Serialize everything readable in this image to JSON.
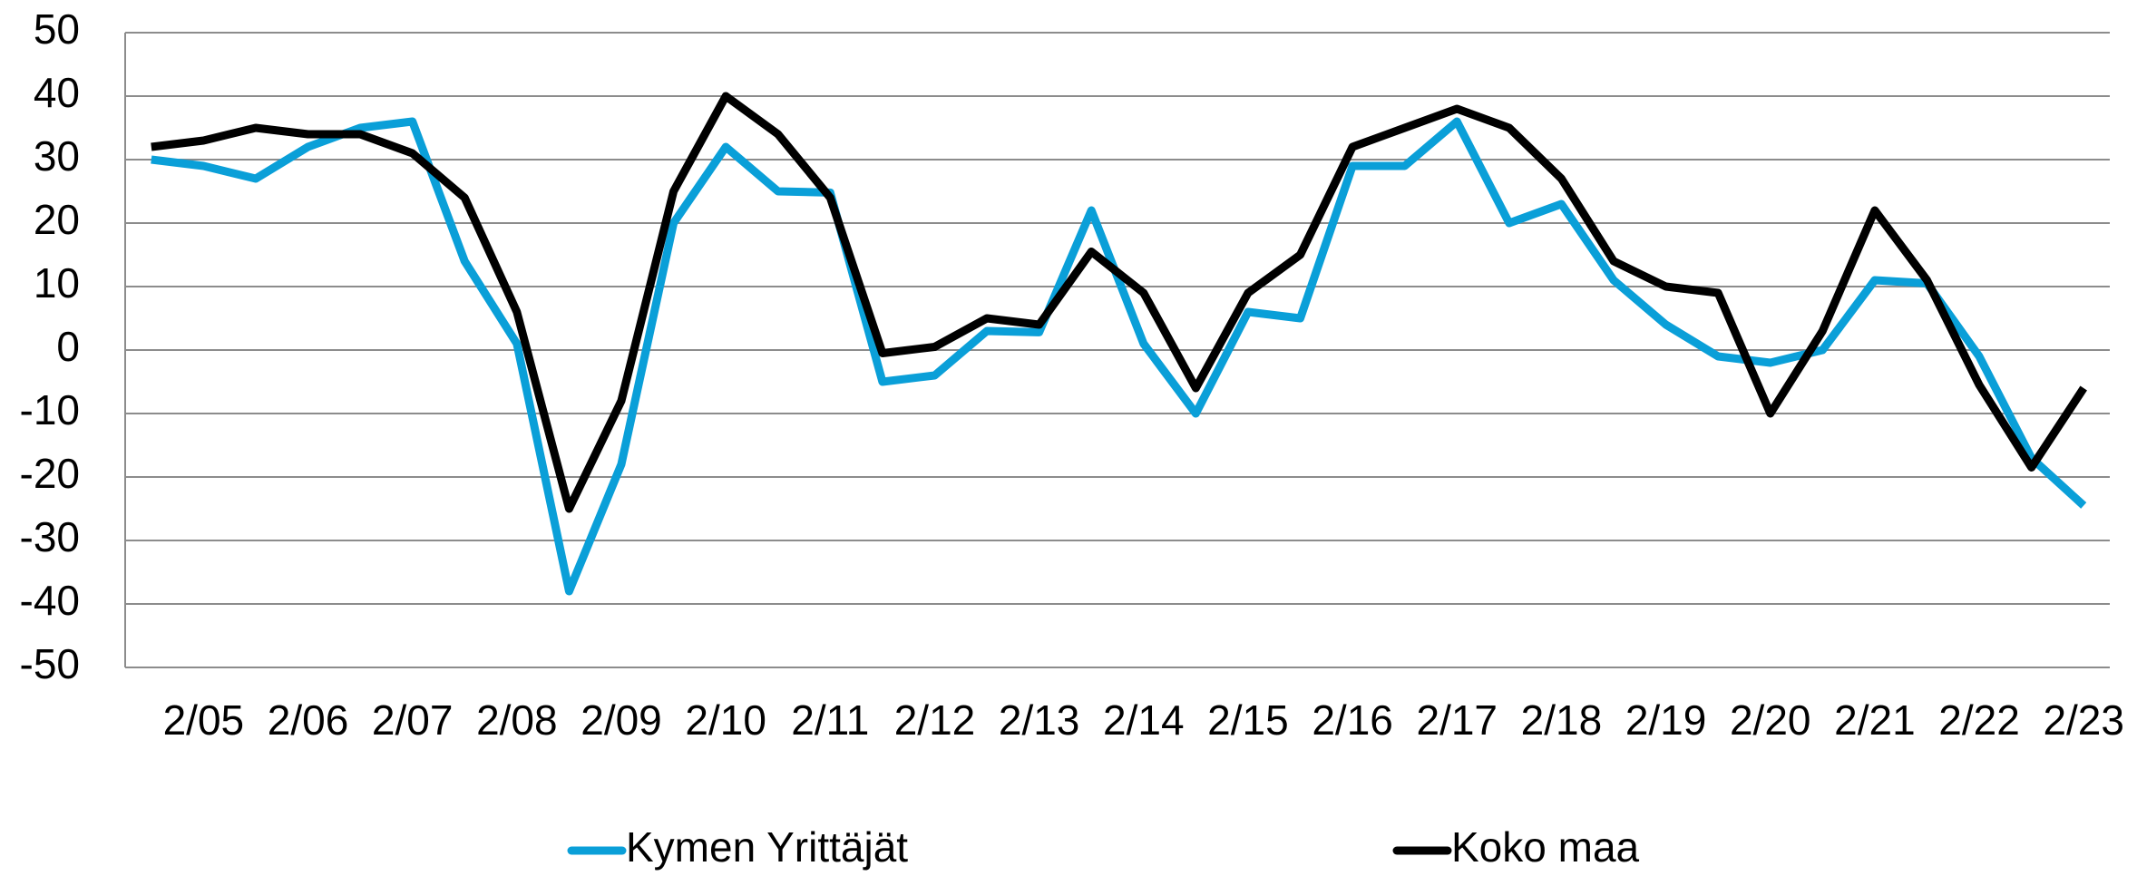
{
  "chart_data": {
    "type": "line",
    "categories": [
      null,
      "2/05",
      null,
      "2/06",
      null,
      "2/07",
      null,
      "2/08",
      null,
      "2/09",
      null,
      "2/10",
      null,
      "2/11",
      null,
      "2/12",
      null,
      "2/13",
      null,
      "2/14",
      null,
      "2/15",
      null,
      "2/16",
      null,
      "2/17",
      null,
      "2/18",
      null,
      "2/19",
      null,
      "2/20",
      null,
      "2/21",
      null,
      "2/22",
      null,
      "2/23"
    ],
    "series": [
      {
        "name": "Kymen Yrittäjät",
        "color": "#0a9fd8",
        "values": [
          30,
          29,
          27,
          32,
          35,
          36,
          14,
          1,
          -38,
          -18,
          20,
          32,
          25,
          24.8,
          -5,
          -4,
          3,
          2.8,
          22,
          1,
          -10,
          6,
          5,
          29,
          29,
          36,
          20,
          23,
          11,
          4,
          -1,
          -2,
          0,
          11,
          10.5,
          -1,
          -17,
          -24.5
        ]
      },
      {
        "name": "Koko maa",
        "color": "#000000",
        "values": [
          32,
          33,
          35,
          34,
          34,
          31,
          24,
          6,
          -25,
          -8,
          25,
          40,
          34,
          24,
          -0.5,
          0.5,
          5,
          4,
          15.5,
          9,
          -6,
          9,
          15,
          32,
          35,
          38,
          35,
          27,
          14,
          10,
          9,
          -10,
          3,
          22,
          11,
          -5.5,
          -18.5,
          -6
        ]
      }
    ],
    "ylim": [
      -50,
      50
    ],
    "yticks": [
      -50,
      -40,
      -30,
      -20,
      -10,
      0,
      10,
      20,
      30,
      40,
      50
    ],
    "grid": true
  }
}
